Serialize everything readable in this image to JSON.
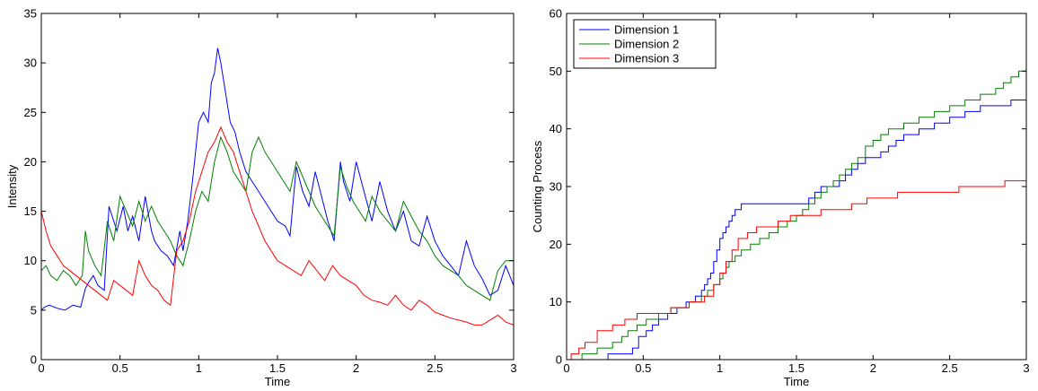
{
  "colors": {
    "dim1": "#0000ff",
    "dim2": "#008000",
    "dim3": "#ff0000"
  },
  "chart_data": [
    {
      "type": "line",
      "xlabel": "Time",
      "ylabel": "Intensity",
      "xlim": [
        0,
        3
      ],
      "ylim": [
        0,
        35
      ],
      "xticks": [
        "0",
        "0.5",
        "1",
        "1.5",
        "2",
        "2.5",
        "3"
      ],
      "yticks": [
        "0",
        "5",
        "10",
        "15",
        "20",
        "25",
        "30",
        "35"
      ],
      "grid": false,
      "series": [
        {
          "color": "#0000ff",
          "x": [
            0,
            0.02,
            0.05,
            0.1,
            0.15,
            0.2,
            0.25,
            0.28,
            0.3,
            0.33,
            0.36,
            0.4,
            0.43,
            0.46,
            0.48,
            0.52,
            0.55,
            0.58,
            0.62,
            0.66,
            0.7,
            0.72,
            0.76,
            0.8,
            0.84,
            0.88,
            0.9,
            0.93,
            0.96,
            0.98,
            1.0,
            1.03,
            1.06,
            1.08,
            1.1,
            1.12,
            1.14,
            1.16,
            1.18,
            1.2,
            1.23,
            1.26,
            1.3,
            1.34,
            1.38,
            1.42,
            1.46,
            1.5,
            1.55,
            1.58,
            1.62,
            1.66,
            1.7,
            1.74,
            1.78,
            1.82,
            1.86,
            1.9,
            1.92,
            1.96,
            2.0,
            2.05,
            2.1,
            2.15,
            2.2,
            2.25,
            2.3,
            2.35,
            2.4,
            2.45,
            2.5,
            2.55,
            2.6,
            2.65,
            2.7,
            2.75,
            2.8,
            2.85,
            2.9,
            2.95,
            3.0
          ],
          "y": [
            5,
            5.3,
            5.5,
            5.2,
            5.0,
            5.5,
            5.3,
            7.2,
            7.8,
            8.5,
            7.5,
            7.0,
            15.5,
            14,
            13,
            15.5,
            13,
            14.5,
            12,
            16.5,
            13,
            12,
            11,
            10.5,
            9.5,
            13,
            11,
            14,
            18,
            21,
            24,
            25,
            24,
            28,
            29,
            31.5,
            30,
            28,
            26,
            24,
            23,
            21,
            19,
            18,
            17,
            16,
            15,
            14,
            13.5,
            12.5,
            19.5,
            17,
            15.5,
            19,
            16.5,
            14,
            12,
            20,
            18,
            16,
            20,
            17,
            14,
            18,
            15,
            13,
            15,
            12,
            11.5,
            14.5,
            12,
            10.5,
            9.5,
            8.5,
            12,
            9.5,
            8.2,
            6.5,
            7,
            9.5,
            7.5
          ]
        },
        {
          "color": "#008000",
          "x": [
            0,
            0.03,
            0.06,
            0.1,
            0.14,
            0.18,
            0.22,
            0.26,
            0.28,
            0.3,
            0.34,
            0.38,
            0.42,
            0.46,
            0.5,
            0.54,
            0.58,
            0.62,
            0.66,
            0.7,
            0.74,
            0.78,
            0.82,
            0.86,
            0.9,
            0.94,
            0.98,
            1.02,
            1.06,
            1.1,
            1.14,
            1.18,
            1.22,
            1.26,
            1.3,
            1.34,
            1.38,
            1.42,
            1.46,
            1.5,
            1.54,
            1.58,
            1.62,
            1.66,
            1.7,
            1.74,
            1.78,
            1.82,
            1.86,
            1.9,
            1.94,
            1.98,
            2.02,
            2.06,
            2.1,
            2.15,
            2.2,
            2.25,
            2.3,
            2.35,
            2.4,
            2.45,
            2.5,
            2.55,
            2.6,
            2.65,
            2.7,
            2.75,
            2.8,
            2.85,
            2.9,
            2.95,
            3.0
          ],
          "y": [
            9,
            9.5,
            8.5,
            8,
            9,
            8.5,
            7.5,
            8.5,
            13,
            11,
            9.5,
            8.5,
            14,
            12,
            16.5,
            15,
            13.5,
            16,
            14,
            15.5,
            14,
            13,
            12,
            10.5,
            9.5,
            12,
            15,
            17,
            16,
            20,
            22.5,
            21,
            19,
            18,
            17,
            21,
            22.5,
            21,
            20,
            19,
            18,
            17,
            20,
            18.5,
            17,
            15.5,
            14.5,
            13.5,
            12.5,
            19.5,
            17.5,
            16,
            15,
            14,
            16.5,
            15,
            14,
            13,
            16,
            14.5,
            13,
            12,
            10.5,
            9.5,
            9,
            8.5,
            7.5,
            7,
            6.5,
            6,
            9,
            10,
            10
          ]
        },
        {
          "color": "#ff0000",
          "x": [
            0,
            0.03,
            0.06,
            0.1,
            0.14,
            0.18,
            0.22,
            0.26,
            0.3,
            0.34,
            0.38,
            0.42,
            0.46,
            0.5,
            0.54,
            0.58,
            0.62,
            0.66,
            0.7,
            0.74,
            0.78,
            0.82,
            0.86,
            0.9,
            0.94,
            0.98,
            1.02,
            1.06,
            1.1,
            1.14,
            1.18,
            1.22,
            1.26,
            1.3,
            1.34,
            1.38,
            1.42,
            1.46,
            1.5,
            1.55,
            1.6,
            1.65,
            1.7,
            1.75,
            1.8,
            1.85,
            1.9,
            1.95,
            2.0,
            2.05,
            2.1,
            2.15,
            2.2,
            2.25,
            2.3,
            2.35,
            2.4,
            2.45,
            2.5,
            2.55,
            2.6,
            2.65,
            2.7,
            2.75,
            2.8,
            2.85,
            2.9,
            2.95,
            3.0
          ],
          "y": [
            15,
            13,
            11.5,
            10.5,
            9.5,
            9,
            8.5,
            8,
            7.5,
            7,
            6.5,
            6,
            8,
            7.5,
            7,
            6.5,
            10,
            8.5,
            7.5,
            7,
            6,
            5.5,
            11,
            12,
            14,
            17,
            19,
            21,
            22,
            23.5,
            22,
            21,
            19,
            17,
            15,
            13.5,
            12,
            11,
            10,
            9.5,
            9,
            8.5,
            10,
            9,
            8,
            9.5,
            8.5,
            8,
            7.5,
            6.5,
            6,
            5.8,
            5.5,
            6.5,
            5.5,
            5,
            6,
            5.5,
            4.8,
            4.5,
            4.2,
            4.0,
            3.8,
            3.5,
            3.5,
            4,
            4.5,
            3.8,
            3.5
          ]
        }
      ]
    },
    {
      "type": "line",
      "xlabel": "Time",
      "ylabel": "Counting Process",
      "xlim": [
        0,
        3
      ],
      "ylim": [
        0,
        60
      ],
      "xticks": [
        "0",
        "0.5",
        "1",
        "1.5",
        "2",
        "2.5",
        "3"
      ],
      "yticks": [
        "0",
        "10",
        "20",
        "30",
        "40",
        "50",
        "60"
      ],
      "grid": false,
      "legend_position": "top-left",
      "series": [
        {
          "name": "Dimension 1",
          "color": "#0000ff",
          "x": [
            0,
            0.27,
            0.43,
            0.47,
            0.52,
            0.56,
            0.6,
            0.66,
            0.72,
            0.78,
            0.84,
            0.88,
            0.9,
            0.92,
            0.94,
            0.96,
            0.98,
            1.0,
            1.02,
            1.04,
            1.06,
            1.08,
            1.1,
            1.14,
            1.2,
            1.3,
            1.4,
            1.5,
            1.58,
            1.62,
            1.66,
            1.7,
            1.74,
            1.78,
            1.82,
            1.86,
            1.9,
            1.95,
            2.0,
            2.05,
            2.1,
            2.15,
            2.2,
            2.3,
            2.4,
            2.5,
            2.6,
            2.7,
            2.8,
            2.9,
            2.95,
            3.0
          ],
          "y": [
            0,
            1,
            2,
            4,
            5,
            6,
            7,
            8,
            9,
            10,
            11,
            12,
            13,
            14,
            15,
            17,
            19,
            21,
            22,
            23,
            24,
            25,
            26,
            27,
            27,
            27,
            27,
            27,
            28,
            29,
            30,
            30,
            30,
            31,
            32,
            33,
            34,
            35,
            35,
            36,
            37,
            38,
            39,
            40,
            41,
            42,
            43,
            44,
            44,
            45,
            45,
            45
          ]
        },
        {
          "name": "Dimension 2",
          "color": "#008000",
          "x": [
            0,
            0.1,
            0.2,
            0.3,
            0.36,
            0.4,
            0.46,
            0.52,
            0.6,
            0.68,
            0.8,
            0.88,
            0.92,
            0.96,
            1.0,
            1.02,
            1.04,
            1.06,
            1.1,
            1.14,
            1.2,
            1.26,
            1.32,
            1.38,
            1.44,
            1.5,
            1.54,
            1.58,
            1.62,
            1.66,
            1.7,
            1.74,
            1.78,
            1.82,
            1.86,
            1.9,
            1.95,
            2.0,
            2.05,
            2.1,
            2.2,
            2.3,
            2.4,
            2.5,
            2.6,
            2.7,
            2.8,
            2.85,
            2.9,
            2.95,
            3.0
          ],
          "y": [
            0,
            1,
            2,
            3,
            4,
            5,
            6,
            7,
            8,
            9,
            10,
            11,
            12,
            13,
            14,
            15,
            16,
            17,
            18,
            19,
            20,
            21,
            22,
            23,
            24,
            25,
            26,
            27,
            28,
            29,
            30,
            31,
            32,
            33,
            34,
            35,
            37,
            38,
            39,
            40,
            41,
            42,
            43,
            44,
            45,
            46,
            47,
            48,
            49,
            50,
            51
          ]
        },
        {
          "name": "Dimension 3",
          "color": "#ff0000",
          "x": [
            0,
            0.03,
            0.08,
            0.12,
            0.2,
            0.3,
            0.38,
            0.46,
            0.56,
            0.68,
            0.8,
            0.9,
            0.96,
            1.0,
            1.04,
            1.08,
            1.12,
            1.18,
            1.24,
            1.3,
            1.38,
            1.46,
            1.56,
            1.66,
            1.76,
            1.86,
            1.96,
            2.06,
            2.16,
            2.26,
            2.4,
            2.56,
            2.72,
            2.86,
            3.0
          ],
          "y": [
            0,
            1,
            2,
            3,
            5,
            6,
            7,
            8,
            8,
            9,
            10,
            11,
            13,
            15,
            17,
            19,
            21,
            22,
            23,
            23,
            24,
            25,
            25,
            26,
            26,
            27,
            28,
            28,
            29,
            29,
            29,
            30,
            30,
            31,
            31
          ]
        }
      ]
    }
  ]
}
